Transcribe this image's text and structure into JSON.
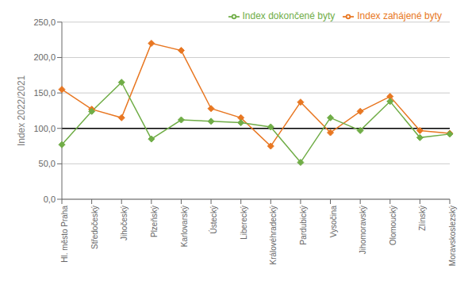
{
  "chart_data": {
    "type": "line",
    "ylabel": "Index 2022/2021",
    "categories": [
      "Hl. město Praha",
      "Středočeský",
      "Jihočeský",
      "Plzeňský",
      "Karlovarský",
      "Ústecký",
      "Liberecký",
      "Královéhradecký",
      "Pardubický",
      "Vysočina",
      "Jihomoravský",
      "Olomoucký",
      "Zlínský",
      "Moravskoslezský"
    ],
    "series": [
      {
        "name": "Index zahájené byty",
        "color": "#E87722",
        "marker": "diamond",
        "values": [
          155,
          127,
          115,
          220,
          210,
          128,
          115,
          75,
          137,
          94,
          124,
          145,
          97,
          93
        ]
      },
      {
        "name": "Index dokončené byty",
        "color": "#70AD47",
        "marker": "diamond",
        "values": [
          77,
          124,
          165,
          85,
          112,
          110,
          108,
          102,
          52,
          115,
          97,
          138,
          87,
          92
        ]
      }
    ],
    "reference_line": 100,
    "ylim": [
      0,
      250
    ],
    "yticks": [
      {
        "value": 0,
        "label": "0,0"
      },
      {
        "value": 50,
        "label": "50,0"
      },
      {
        "value": 100,
        "label": "100,0"
      },
      {
        "value": 150,
        "label": "150,0"
      },
      {
        "value": 200,
        "label": "200,0"
      },
      {
        "value": 250,
        "label": "250,0"
      }
    ],
    "grid": true,
    "legend": "upper right"
  }
}
